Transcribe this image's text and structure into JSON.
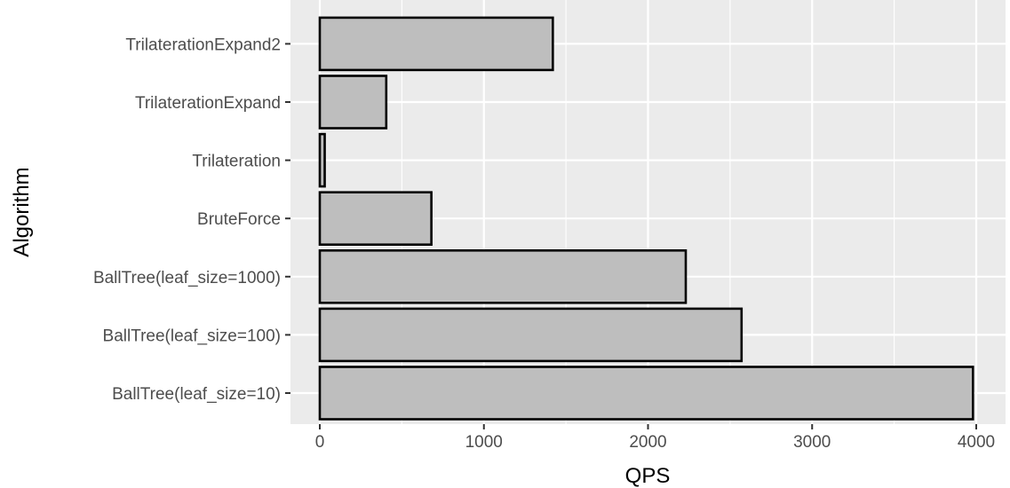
{
  "chart_data": {
    "type": "bar",
    "orientation": "horizontal",
    "categories": [
      "BallTree(leaf_size=10)",
      "BallTree(leaf_size=100)",
      "BallTree(leaf_size=1000)",
      "BruteForce",
      "Trilateration",
      "TrilaterationExpand",
      "TrilaterationExpand2"
    ],
    "values": [
      3980,
      2570,
      2230,
      680,
      30,
      405,
      1420
    ],
    "xlabel": "QPS",
    "ylabel": "Algorithm",
    "xlim": [
      -180,
      4120
    ],
    "xticks": [
      0,
      1000,
      2000,
      3000,
      4000
    ],
    "xtick_labels": [
      "0",
      "1000",
      "2000",
      "3000",
      "4000"
    ],
    "grid": true,
    "legend": "none",
    "colors": {
      "panel_background": "#ebebeb",
      "grid": "#ffffff",
      "bar_fill": "#bebebe",
      "bar_stroke": "#000000",
      "tick_text": "#4d4d4d",
      "tick_mark": "#333333"
    }
  }
}
